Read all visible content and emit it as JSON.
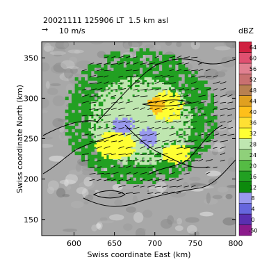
{
  "header": {
    "timestamp": "20021111 125906 LT",
    "altitude": "1.5 km asl",
    "wind_reference": "10 m/s"
  },
  "chart_data": {
    "type": "heatmap",
    "xlabel": "Swiss coordinate East (km)",
    "ylabel": "Swiss coordinate North (km)",
    "xlim": [
      560,
      800
    ],
    "ylim": [
      130,
      370
    ],
    "xticks": [
      600,
      650,
      700,
      750,
      800
    ],
    "yticks": [
      150,
      200,
      250,
      300,
      350
    ],
    "colorbar": {
      "title": "dBZ",
      "levels": [
        "-50",
        "0",
        "4",
        "8",
        "12",
        "16",
        "20",
        "24",
        "28",
        "32",
        "36",
        "40",
        "44",
        "48",
        "52",
        "56",
        "60",
        "64"
      ],
      "colors": [
        "#8b1a8b",
        "#5a2fb0",
        "#6666dd",
        "#9999ee",
        "#0d8a0d",
        "#22a022",
        "#55bb44",
        "#8fd07a",
        "#bfe6b0",
        "#ffff33",
        "#ffe033",
        "#ffbf1a",
        "#e0a020",
        "#b88050",
        "#c87070",
        "#e08090",
        "#e05070",
        "#d02040"
      ]
    },
    "echo_regions": [
      {
        "dbz_class": "12-20",
        "cx": 680,
        "cy": 275,
        "rx": 95,
        "ry": 85
      },
      {
        "dbz_class": "24-28",
        "cx": 680,
        "cy": 270,
        "rx": 65,
        "ry": 55
      },
      {
        "dbz_class": "32-36",
        "cx": 650,
        "cy": 240,
        "rx": 25,
        "ry": 18
      },
      {
        "dbz_class": "32-36",
        "cx": 715,
        "cy": 288,
        "rx": 20,
        "ry": 20
      },
      {
        "dbz_class": "32-36",
        "cx": 725,
        "cy": 230,
        "rx": 18,
        "ry": 12
      },
      {
        "dbz_class": "36-40",
        "cx": 700,
        "cy": 290,
        "rx": 12,
        "ry": 10
      },
      {
        "dbz_class": "4-8",
        "cx": 660,
        "cy": 265,
        "rx": 15,
        "ry": 10
      },
      {
        "dbz_class": "4-8",
        "cx": 690,
        "cy": 250,
        "rx": 12,
        "ry": 12
      }
    ]
  }
}
